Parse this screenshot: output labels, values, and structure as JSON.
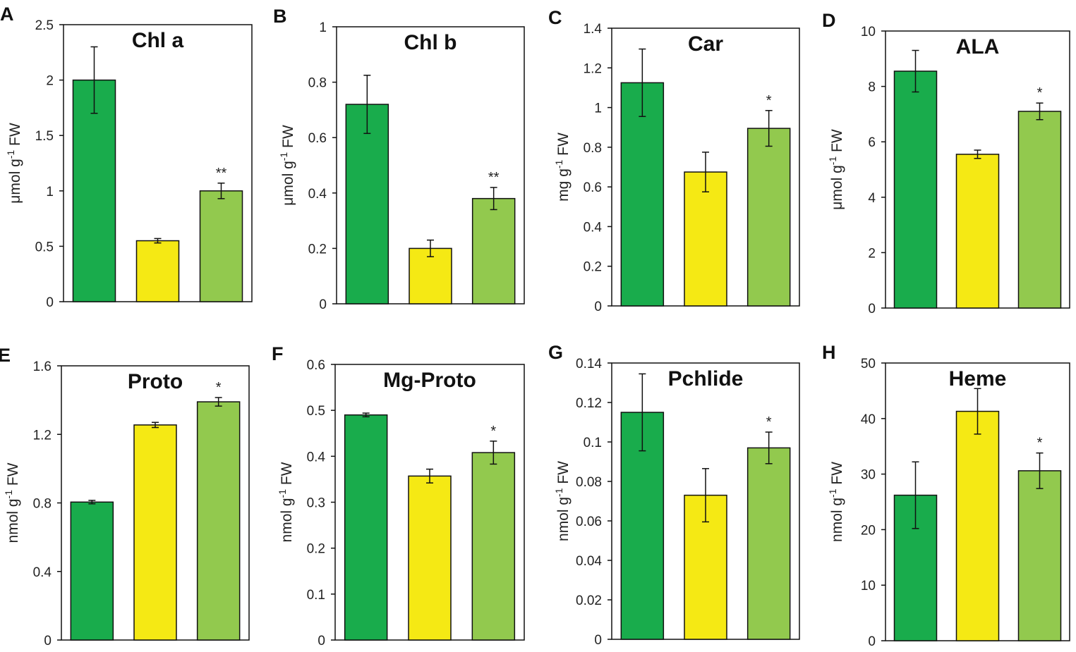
{
  "colors": {
    "group1": "#19AC4C",
    "group2": "#F5E914",
    "group3": "#92C94E"
  },
  "chart_data": [
    {
      "type": "bar",
      "panel": "A",
      "title": "Chl a",
      "ylabel": {
        "unit": "μmol g",
        "sup": "-1",
        "suffix": " FW"
      },
      "ylim": [
        0,
        2.5
      ],
      "ticks": [
        "0",
        "0.5",
        "1",
        "1.5",
        "2",
        "2.5"
      ],
      "values": [
        2.0,
        0.55,
        1.0
      ],
      "errors": [
        0.3,
        0.02,
        0.07
      ],
      "significance": [
        "",
        "",
        "**"
      ]
    },
    {
      "type": "bar",
      "panel": "B",
      "title": "Chl b",
      "ylabel": {
        "unit": "μmol g",
        "sup": "-1",
        "suffix": " FW"
      },
      "ylim": [
        0,
        1
      ],
      "ticks": [
        "0",
        "0.2",
        "0.4",
        "0.6",
        "0.8",
        "1"
      ],
      "values": [
        0.72,
        0.2,
        0.38
      ],
      "errors": [
        0.105,
        0.03,
        0.04
      ],
      "significance": [
        "",
        "",
        "**"
      ]
    },
    {
      "type": "bar",
      "panel": "C",
      "title": "Car",
      "ylabel": {
        "unit": "mg g",
        "sup": "-1",
        "suffix": " FW"
      },
      "ylim": [
        0,
        1.4
      ],
      "ticks": [
        "0",
        "0.2",
        "0.4",
        "0.6",
        "0.8",
        "1",
        "1.2",
        "1.4"
      ],
      "values": [
        1.125,
        0.675,
        0.895
      ],
      "errors": [
        0.17,
        0.1,
        0.09
      ],
      "significance": [
        "",
        "",
        "*"
      ]
    },
    {
      "type": "bar",
      "panel": "D",
      "title": "ALA",
      "ylabel": {
        "unit": "μmol g",
        "sup": "-1",
        "suffix": " FW"
      },
      "ylim": [
        0,
        10
      ],
      "ticks": [
        "0",
        "2",
        "4",
        "6",
        "8",
        "10"
      ],
      "values": [
        8.55,
        5.55,
        7.1
      ],
      "errors": [
        0.75,
        0.15,
        0.3
      ],
      "significance": [
        "",
        "",
        "*"
      ]
    },
    {
      "type": "bar",
      "panel": "E",
      "title": "Proto",
      "ylabel": {
        "unit": "nmol g",
        "sup": "-1",
        "suffix": " FW"
      },
      "ylim": [
        0,
        1.6
      ],
      "ticks": [
        "0",
        "0.4",
        "0.8",
        "1.2",
        "1.6"
      ],
      "values": [
        0.805,
        1.255,
        1.39
      ],
      "errors": [
        0.01,
        0.015,
        0.025
      ],
      "significance": [
        "",
        "",
        "*"
      ]
    },
    {
      "type": "bar",
      "panel": "F",
      "title": "Mg-Proto",
      "ylabel": {
        "unit": "nmol g",
        "sup": "-1",
        "suffix": " FW"
      },
      "ylim": [
        0,
        0.6
      ],
      "ticks": [
        "0",
        "0.1",
        "0.2",
        "0.3",
        "0.4",
        "0.5",
        "0.6"
      ],
      "values": [
        0.49,
        0.357,
        0.408
      ],
      "errors": [
        0.004,
        0.015,
        0.025
      ],
      "significance": [
        "",
        "",
        "*"
      ]
    },
    {
      "type": "bar",
      "panel": "G",
      "title": "Pchlide",
      "ylabel": {
        "unit": "nmol g",
        "sup": "-1",
        "suffix": " FW"
      },
      "ylim": [
        0,
        0.14
      ],
      "ticks": [
        "0",
        "0.02",
        "0.04",
        "0.06",
        "0.08",
        "0.1",
        "0.12",
        "0.14"
      ],
      "values": [
        0.115,
        0.073,
        0.097
      ],
      "errors": [
        0.0195,
        0.0135,
        0.008
      ],
      "significance": [
        "",
        "",
        "*"
      ]
    },
    {
      "type": "bar",
      "panel": "H",
      "title": "Heme",
      "ylabel": {
        "unit": "nmol g",
        "sup": "-1",
        "suffix": " FW"
      },
      "ylim": [
        0,
        50
      ],
      "ticks": [
        "0",
        "10",
        "20",
        "30",
        "40",
        "50"
      ],
      "values": [
        26.2,
        41.3,
        30.6
      ],
      "errors": [
        6,
        4.1,
        3.2
      ],
      "significance": [
        "",
        "",
        "*"
      ]
    }
  ]
}
